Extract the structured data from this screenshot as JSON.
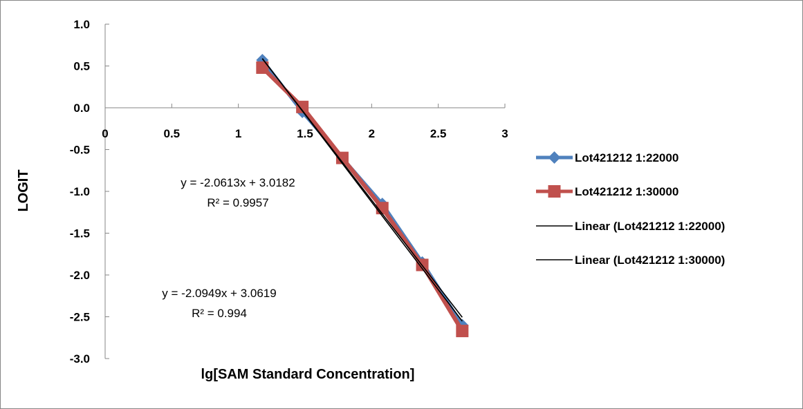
{
  "chart_data": {
    "type": "scatter",
    "title": "",
    "xlabel": "lg[SAM Standard Concentration]",
    "ylabel": "LOGIT",
    "xlim": [
      0,
      3
    ],
    "ylim": [
      -3.0,
      1.0
    ],
    "x_ticks": [
      "0",
      "0.5",
      "1",
      "1.5",
      "2",
      "2.5",
      "3"
    ],
    "y_ticks": [
      "1.0",
      "0.5",
      "0.0",
      "-0.5",
      "-1.0",
      "-1.5",
      "-2.0",
      "-2.5",
      "-3.0"
    ],
    "grid": false,
    "legend_position": "right",
    "series": [
      {
        "name": "Lot421212  1:22000",
        "color": "#4f81bd",
        "marker": "diamond",
        "x": [
          1.18,
          1.48,
          1.78,
          2.08,
          2.38,
          2.68
        ],
        "y": [
          0.57,
          -0.05,
          -0.6,
          -1.15,
          -1.85,
          -2.6
        ]
      },
      {
        "name": "Lot421212  1:30000",
        "color": "#c0504d",
        "marker": "square",
        "x": [
          1.18,
          1.48,
          1.78,
          2.08,
          2.38,
          2.68
        ],
        "y": [
          0.48,
          0.01,
          -0.6,
          -1.2,
          -1.88,
          -2.67
        ]
      }
    ],
    "trendlines": [
      {
        "name": "Linear (Lot421212  1:22000)",
        "color": "#000000",
        "slope": -2.0613,
        "intercept": 3.0182,
        "x_range": [
          1.18,
          2.68
        ],
        "equation": "y = -2.0613x + 3.0182",
        "r2": "R² = 0.9957"
      },
      {
        "name": "Linear (Lot421212  1:30000)",
        "color": "#000000",
        "slope": -2.0949,
        "intercept": 3.0619,
        "x_range": [
          1.18,
          2.68
        ],
        "equation": "y = -2.0949x + 3.0619",
        "r2": "R² = 0.994"
      }
    ]
  }
}
